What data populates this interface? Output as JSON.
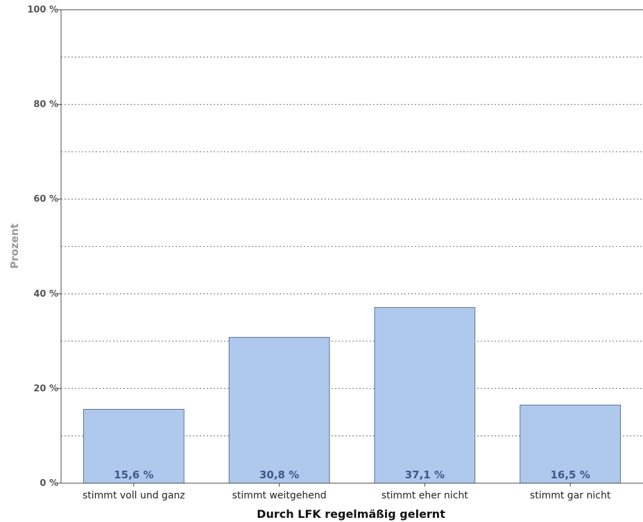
{
  "chart_data": {
    "type": "bar",
    "title": "",
    "xlabel": "Durch LFK regelmäßig gelernt",
    "ylabel": "Prozent",
    "ylim": [
      0,
      100
    ],
    "yticks": [
      0,
      20,
      40,
      60,
      80,
      100
    ],
    "ytick_labels": [
      "0 %",
      "20 %",
      "40 %",
      "60 %",
      "80 %",
      "100 %"
    ],
    "minor_gridlines": [
      10,
      30,
      50,
      70,
      90
    ],
    "grid": true,
    "categories": [
      "stimmt voll und ganz",
      "stimmt weitgehend",
      "stimmt eher nicht",
      "stimmt gar nicht"
    ],
    "values": [
      15.6,
      30.8,
      37.1,
      16.5
    ],
    "value_labels": [
      "15,6 %",
      "30,8 %",
      "37,1 %",
      "16,5 %"
    ],
    "colors": {
      "bar_fill": "#aec9ec",
      "bar_stroke": "#5a6f96",
      "gridline": "#8a8a8a",
      "axis": "#444444",
      "data_label": "#3b5a8c"
    }
  }
}
